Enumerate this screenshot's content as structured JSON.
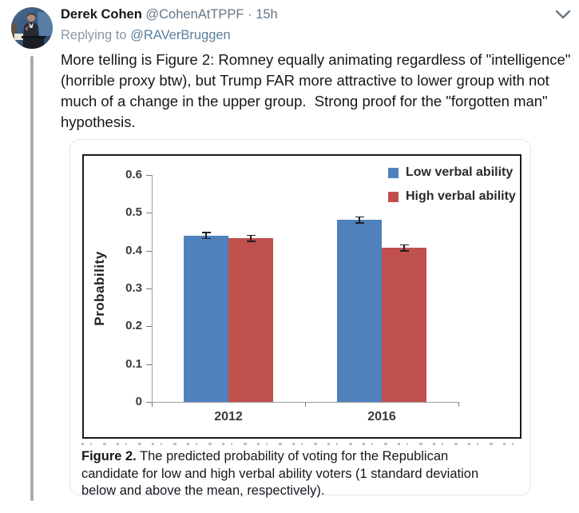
{
  "tweet": {
    "author_name": "Derek Cohen",
    "author_handle": "@CohenAtTPPF",
    "separator": "·",
    "timestamp": "15h",
    "replying_prefix": "Replying to ",
    "replying_to_handle": "@RAVerBruggen",
    "body_text": "More telling is Figure 2: Romney equally animating regardless of \"intelligence\"\n(horrible proxy btw), but Trump FAR more attractive to lower group with not\nmuch of a change in the upper group.  Strong proof for the \"forgotten man\"\nhypothesis."
  },
  "figure": {
    "caption_label": "Figure 2.",
    "caption_text": " The predicted probability of voting for the Republican\ncandidate for low and high verbal ability voters (1 standard deviation\nbelow and above the mean, respectively)."
  },
  "chart_data": {
    "type": "bar",
    "categories": [
      "2012",
      "2016"
    ],
    "series": [
      {
        "name": "Low verbal ability",
        "color": "#4f81bd",
        "values": [
          0.44,
          0.481
        ],
        "errors": [
          0.008,
          0.008
        ]
      },
      {
        "name": "High verbal ability",
        "color": "#c0504d",
        "values": [
          0.433,
          0.407
        ],
        "errors": [
          0.008,
          0.008
        ]
      }
    ],
    "title": "",
    "xlabel": "",
    "ylabel": "Probability",
    "ylim": [
      0,
      0.6
    ],
    "yticks": [
      "0",
      "0.1",
      "0.2",
      "0.3",
      "0.4",
      "0.5",
      "0.6"
    ],
    "grid": false,
    "legend_position": "top-right",
    "error_bar_color": "#1f1f1f"
  },
  "colors": {
    "author_name": "#14171a",
    "meta_gray": "#657786",
    "reply_link": "#5b7f9d",
    "thread_line": "#a9b0a3",
    "card_border": "#e2e8ed"
  }
}
